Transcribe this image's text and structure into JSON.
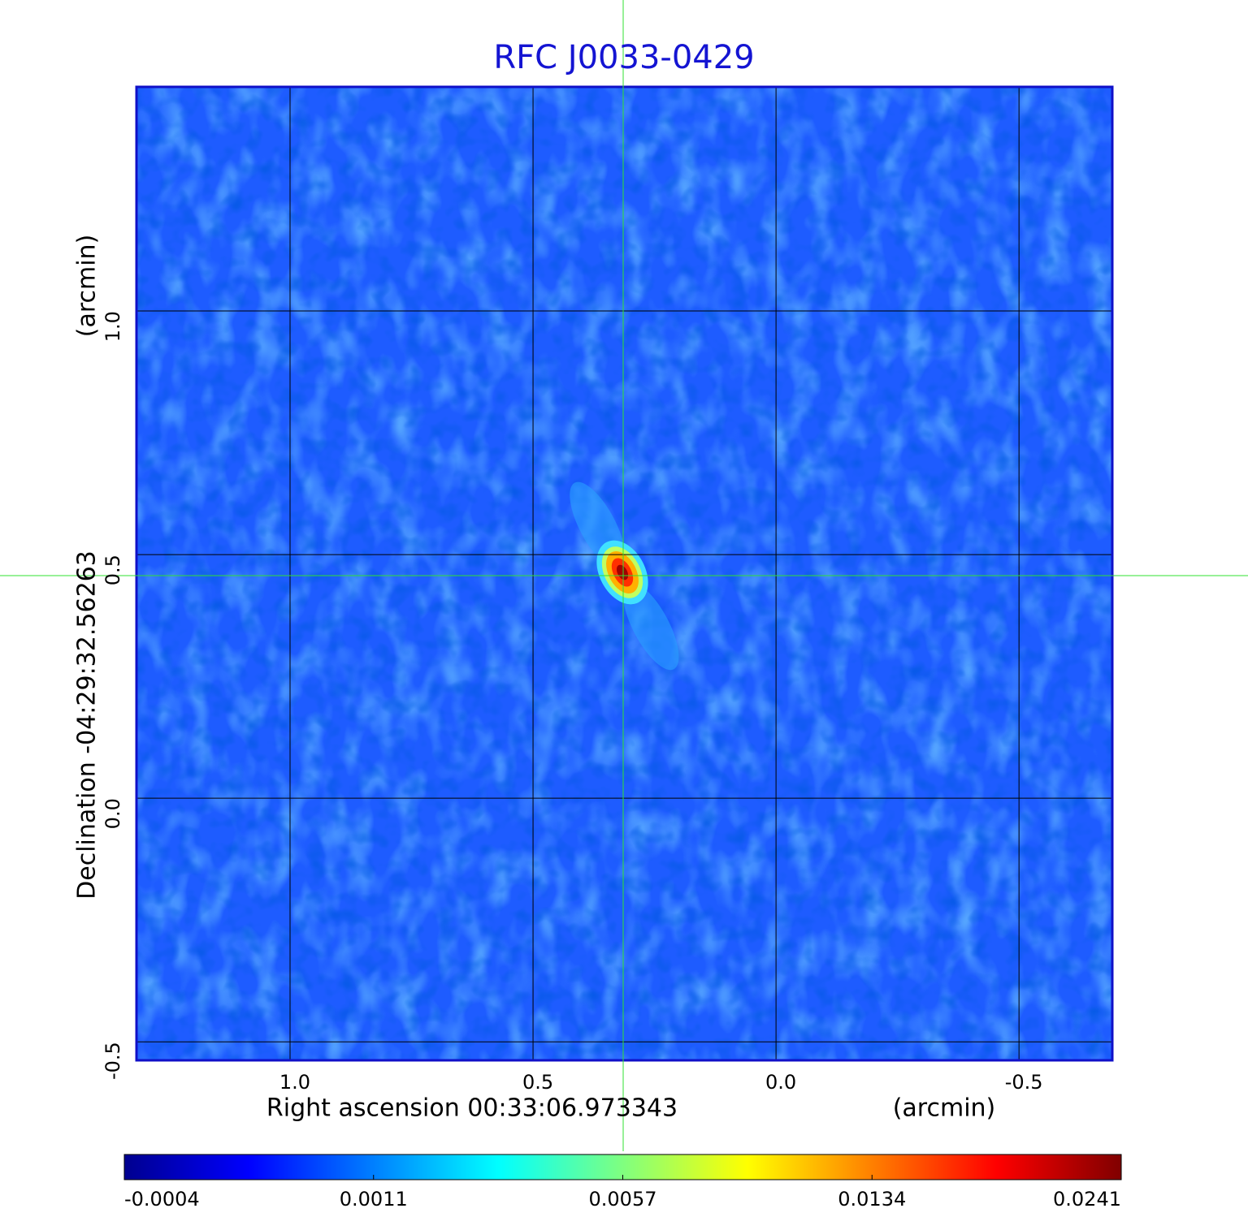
{
  "chart_data": {
    "type": "image",
    "title": "RFC J0033-0429",
    "xlabel": "Right ascension  00:33:06.973343",
    "xunit": "(arcmin)",
    "ylabel": "Declination  -04:29:32.56263",
    "yunit": "(arcmin)",
    "xlim": [
      1.316,
      -0.692
    ],
    "ylim": [
      -0.538,
      1.46
    ],
    "xticks": [
      {
        "value": 1,
        "label": "1.0"
      },
      0.5,
      {
        "value": 0,
        "label": "0.0"
      },
      -0.5
    ],
    "yticks": [
      -0.5,
      {
        "value": 0,
        "label": "0.0"
      },
      0.5,
      {
        "value": 1,
        "label": "1.0"
      }
    ],
    "grid": true,
    "colormap": "jet",
    "colorbar_ticks": [
      -0.0004,
      0.0011,
      0.0057,
      0.0134,
      0.0241
    ]
  }
}
